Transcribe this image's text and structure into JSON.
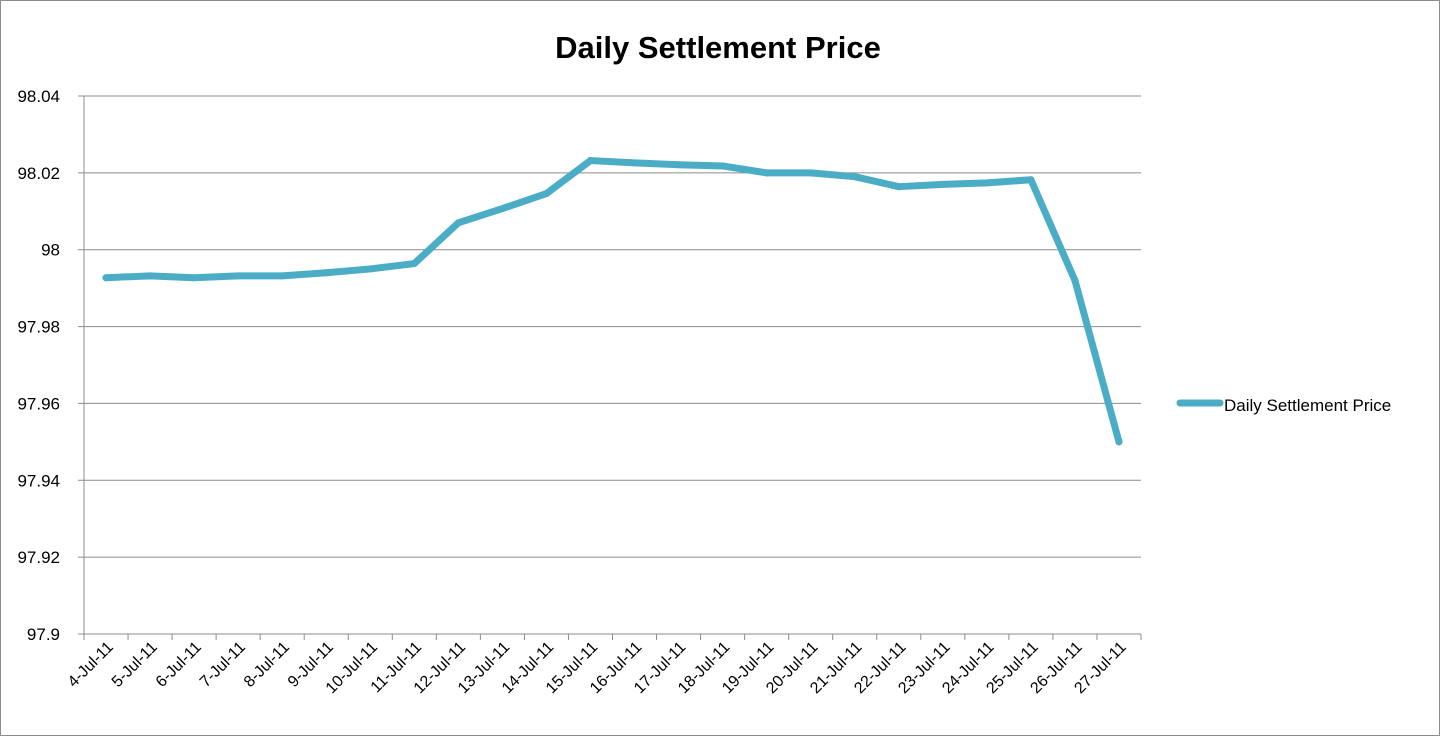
{
  "chart_data": {
    "type": "line",
    "title": "Daily Settlement Price",
    "xlabel": "",
    "ylabel": "",
    "ylim": [
      97.9,
      98.04
    ],
    "yticks": [
      "97.9",
      "97.92",
      "97.94",
      "97.96",
      "97.98",
      "98",
      "98.02",
      "98.04"
    ],
    "ytick_values": [
      97.9,
      97.92,
      97.94,
      97.96,
      97.98,
      98.0,
      98.02,
      98.04
    ],
    "grid": true,
    "legend_position": "right",
    "categories": [
      "4-Jul-11",
      "5-Jul-11",
      "6-Jul-11",
      "7-Jul-11",
      "8-Jul-11",
      "9-Jul-11",
      "10-Jul-11",
      "11-Jul-11",
      "12-Jul-11",
      "13-Jul-11",
      "14-Jul-11",
      "15-Jul-11",
      "16-Jul-11",
      "17-Jul-11",
      "18-Jul-11",
      "19-Jul-11",
      "20-Jul-11",
      "21-Jul-11",
      "22-Jul-11",
      "23-Jul-11",
      "24-Jul-11",
      "25-Jul-11",
      "26-Jul-11",
      "27-Jul-11"
    ],
    "series": [
      {
        "name": "Daily Settlement Price",
        "color": "#4bacc6",
        "values": [
          97.9927,
          97.9932,
          97.9927,
          97.9932,
          97.9932,
          97.994,
          97.995,
          97.9964,
          98.007,
          98.0107,
          98.0146,
          98.0232,
          98.0226,
          98.0221,
          98.0218,
          98.02,
          98.02,
          98.019,
          98.0164,
          98.017,
          98.0174,
          98.0182,
          97.992,
          97.95
        ]
      }
    ]
  }
}
